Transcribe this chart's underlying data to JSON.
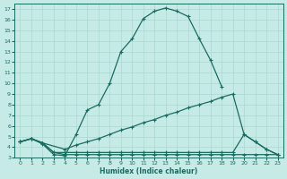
{
  "xlabel": "Humidex (Indice chaleur)",
  "bg_color": "#c6ebe6",
  "grid_color": "#a8d8d0",
  "line_color": "#1a6b60",
  "xlim": [
    -0.5,
    23.5
  ],
  "ylim": [
    3,
    17.5
  ],
  "xticks": [
    0,
    1,
    2,
    3,
    4,
    5,
    6,
    7,
    8,
    9,
    10,
    11,
    12,
    13,
    14,
    15,
    16,
    17,
    18,
    19,
    20,
    21,
    22,
    23
  ],
  "yticks": [
    3,
    4,
    5,
    6,
    7,
    8,
    9,
    10,
    11,
    12,
    13,
    14,
    15,
    16,
    17
  ],
  "line1_x": [
    0,
    1,
    2,
    3,
    4,
    5,
    6,
    7,
    8,
    9,
    10,
    11,
    12,
    13,
    14,
    15,
    16,
    17,
    18
  ],
  "line1_y": [
    4.5,
    4.8,
    4.3,
    3.3,
    3.2,
    5.2,
    7.5,
    8.0,
    10.0,
    13.0,
    14.2,
    16.1,
    16.8,
    17.1,
    16.8,
    16.3,
    14.2,
    12.2,
    9.7
  ],
  "line2_x": [
    0,
    1,
    2,
    3,
    4,
    5,
    6,
    7,
    8,
    9,
    10,
    11,
    12,
    13,
    14,
    15,
    16,
    17,
    18,
    19,
    20,
    21,
    22,
    23
  ],
  "line2_y": [
    4.5,
    4.8,
    4.4,
    3.5,
    3.3,
    3.3,
    3.3,
    3.3,
    3.3,
    3.3,
    3.3,
    3.3,
    3.3,
    3.3,
    3.3,
    3.3,
    3.3,
    3.3,
    3.3,
    3.3,
    3.3,
    3.3,
    3.3,
    3.3
  ],
  "line3_x": [
    0,
    1,
    2,
    4,
    5,
    6,
    7,
    8,
    9,
    10,
    11,
    12,
    13,
    14,
    15,
    16,
    17,
    18,
    19,
    20,
    21,
    22,
    23
  ],
  "line3_y": [
    4.5,
    4.8,
    4.4,
    3.8,
    4.2,
    4.5,
    4.8,
    5.2,
    5.6,
    5.9,
    6.3,
    6.6,
    7.0,
    7.3,
    7.7,
    8.0,
    8.3,
    8.7,
    9.0,
    5.2,
    4.5,
    3.8,
    3.3
  ],
  "line4_x": [
    0,
    1,
    2,
    3,
    4,
    5,
    6,
    7,
    8,
    9,
    10,
    11,
    12,
    13,
    14,
    15,
    16,
    17,
    18,
    19,
    20,
    21,
    22,
    23
  ],
  "line4_y": [
    4.5,
    4.8,
    4.4,
    3.5,
    3.5,
    3.5,
    3.5,
    3.5,
    3.5,
    3.5,
    3.5,
    3.5,
    3.5,
    3.5,
    3.5,
    3.5,
    3.5,
    3.5,
    3.5,
    3.5,
    5.2,
    4.5,
    3.8,
    3.3
  ]
}
